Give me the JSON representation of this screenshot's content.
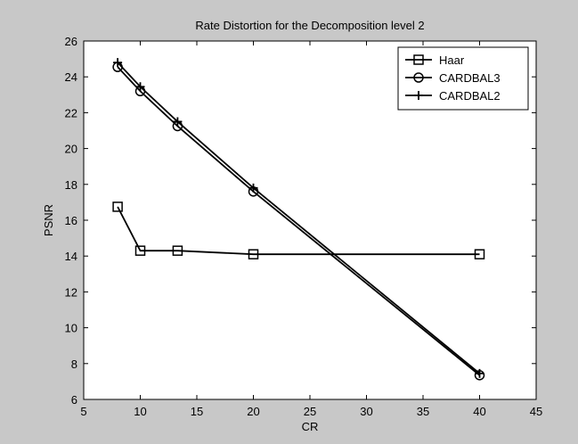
{
  "chart_data": {
    "type": "line",
    "title": "Rate Distortion for the Decomposition level 2",
    "xlabel": "CR",
    "ylabel": "PSNR",
    "xlim": [
      5,
      45
    ],
    "ylim": [
      6,
      26
    ],
    "xticks": [
      5,
      10,
      15,
      20,
      25,
      30,
      35,
      40,
      45
    ],
    "yticks": [
      6,
      8,
      10,
      12,
      14,
      16,
      18,
      20,
      22,
      24,
      26
    ],
    "grid": false,
    "legend_position": "top-right",
    "series": [
      {
        "name": "Haar",
        "marker": "square",
        "color": "#000000",
        "x": [
          8,
          10,
          13.3,
          20,
          40
        ],
        "y": [
          16.75,
          14.3,
          14.3,
          14.1,
          14.1
        ]
      },
      {
        "name": "CARDBAL3",
        "marker": "circle",
        "color": "#000000",
        "x": [
          8,
          10,
          13.3,
          20,
          40
        ],
        "y": [
          24.55,
          23.2,
          21.25,
          17.6,
          7.35
        ]
      },
      {
        "name": "CARDBAL2",
        "marker": "plus",
        "color": "#000000",
        "x": [
          8,
          10,
          13.3,
          20,
          40
        ],
        "y": [
          24.8,
          23.45,
          21.5,
          17.8,
          7.45
        ]
      }
    ]
  }
}
